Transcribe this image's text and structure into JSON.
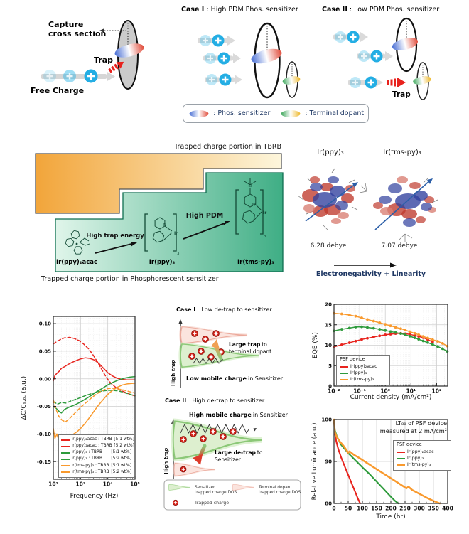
{
  "top": {
    "capture": {
      "line1": "Capture",
      "line2": "cross section",
      "trap": "Trap",
      "free_charge": "Free Charge"
    },
    "case1": {
      "label": "Case I",
      "rest": " : High PDM Phos. sensitizer"
    },
    "case2": {
      "label": "Case II",
      "rest": " : Low PDM Phos. sensitizer",
      "trap": "Trap"
    },
    "legend": {
      "phos": ": Phos. sensitizer",
      "terminal": ": Terminal dopant"
    }
  },
  "stair": {
    "top_label": "Trapped charge portion in TBRB",
    "bottom_label": "Trapped charge portion in Phosphorescent sensitizer",
    "arrow1": "High trap energy",
    "arrow2": "High PDM",
    "mol1": "Ir(ppy)₂acac",
    "mol2": "Ir(ppy)₃",
    "mol3": "Ir(tms-py)₃"
  },
  "dipole": {
    "left_name": "Ir(ppy)₃",
    "right_name": "Ir(tms-py)₃",
    "left_value": "6.28 debye",
    "right_value": "7.07 debye",
    "caption": "Electronegativity + Linearity"
  },
  "dos": {
    "case1_label": "Case I",
    "case1_rest": ": Low de-trap to sensitizer",
    "case2_label": "Case II",
    "case2_rest": ": High de-trap to sensitizer",
    "axis_high": "High",
    "axis_trap": "trap",
    "large_trap": "Large trap",
    "large_trap_to": "to",
    "terminal_dopant": "terminal dopant",
    "low_mobile": "Low mobile charge",
    "in_sensitizer": "in Sensitizer",
    "high_mobile": "High mobile charge",
    "in_sensitizer2": "in Sensitizer",
    "large_detrap": "Large de-trap",
    "large_detrap_to": "to",
    "sensitizer": "Sensitizer",
    "legend": {
      "sens1": "Sensitizer",
      "sens2": "trapped charge DOS",
      "term1": "Terminal dopant",
      "term2": "trapped charge DOS",
      "charge": "Trapped charge"
    }
  },
  "chart_data": [
    {
      "id": "chart-dcc",
      "type": "line",
      "xscale": "log",
      "xlabel": "Frequency (Hz)",
      "ylabel": "ΔC/Cₛ.ₒ. (a.u.)",
      "xlim": [
        100,
        100000
      ],
      "ylim": [
        -0.182,
        0.113
      ],
      "xticks": [
        100,
        1000,
        10000,
        100000
      ],
      "xtick_labels": [
        "10²",
        "10³",
        "10⁴",
        "10⁵"
      ],
      "yticks": [
        0.1,
        0.05,
        0.0,
        -0.05,
        -0.1,
        -0.15
      ],
      "ytick_labels": [
        "0.10",
        "0.05",
        "0.00",
        "-0.05",
        "-0.10",
        "-0.15"
      ],
      "series": [
        {
          "name": "Ir(ppy)₂acac : TBRB",
          "ratio": "[5:1 wt%]",
          "color": "#e8251f",
          "dash": "dashed",
          "x": [
            100,
            130,
            180,
            250,
            400,
            600,
            900,
            1300,
            2000,
            3000,
            4500,
            6500,
            9000,
            13000,
            20000,
            30000,
            50000,
            100000
          ],
          "y": [
            0.063,
            0.067,
            0.071,
            0.074,
            0.075,
            0.073,
            0.069,
            0.063,
            0.054,
            0.042,
            0.028,
            0.014,
            0.002,
            -0.008,
            -0.016,
            -0.021,
            -0.026,
            -0.031
          ]
        },
        {
          "name": "Ir(ppy)₂acac : TBRB",
          "ratio": "[5:2 wt%]",
          "color": "#e8251f",
          "dash": "solid",
          "x": [
            100,
            115,
            130,
            160,
            200,
            260,
            350,
            500,
            700,
            1000,
            1500,
            2200,
            3200,
            4700,
            7000,
            10000,
            15000,
            22000,
            33000,
            50000,
            100000
          ],
          "y": [
            -0.004,
            0.006,
            0.009,
            0.013,
            0.019,
            0.022,
            0.026,
            0.03,
            0.033,
            0.036,
            0.038,
            0.037,
            0.034,
            0.028,
            0.019,
            0.011,
            0.005,
            0.001,
            -0.001,
            -0.002,
            -0.002
          ]
        },
        {
          "name": "Ir(ppy)₃ : TBRB",
          "ratio": "[5:1 wt%]",
          "color": "#2e9b3c",
          "dash": "dashed",
          "x": [
            100,
            140,
            200,
            300,
            450,
            700,
            1000,
            1600,
            2500,
            4000,
            6500,
            10000,
            16000,
            25000,
            40000,
            65000,
            100000
          ],
          "y": [
            -0.041,
            -0.046,
            -0.043,
            -0.044,
            -0.04,
            -0.037,
            -0.034,
            -0.03,
            -0.027,
            -0.024,
            -0.022,
            -0.021,
            -0.021,
            -0.022,
            -0.025,
            -0.028,
            -0.031
          ]
        },
        {
          "name": "Ir(ppy)₃ : TBRB",
          "ratio": "[5:2 wt%]",
          "color": "#2e9b3c",
          "dash": "solid",
          "x": [
            100,
            130,
            170,
            200,
            250,
            320,
            450,
            700,
            1000,
            1600,
            2500,
            4000,
            6500,
            10000,
            16000,
            25000,
            40000,
            65000,
            100000
          ],
          "y": [
            -0.05,
            -0.054,
            -0.06,
            -0.062,
            -0.056,
            -0.053,
            -0.05,
            -0.046,
            -0.042,
            -0.036,
            -0.03,
            -0.023,
            -0.017,
            -0.011,
            -0.006,
            -0.002,
            0.001,
            0.003,
            0.004
          ]
        },
        {
          "name": "Ir(tms-py)₃ : TBRB",
          "ratio": "[5:1 wt%]",
          "color": "#f99a2e",
          "dash": "dashed",
          "x": [
            100,
            125,
            160,
            210,
            280,
            380,
            520,
            750,
            1100,
            1700,
            2600,
            4000,
            6000,
            9000,
            14000,
            22000,
            35000,
            60000,
            100000
          ],
          "y": [
            -0.038,
            -0.055,
            -0.068,
            -0.075,
            -0.078,
            -0.073,
            -0.066,
            -0.058,
            -0.05,
            -0.042,
            -0.034,
            -0.027,
            -0.022,
            -0.018,
            -0.017,
            -0.018,
            -0.02,
            -0.023,
            -0.026
          ]
        },
        {
          "name": "Ir(tms-py)₃ : TBRB",
          "ratio": "[5:2 wt%]",
          "color": "#f99a2e",
          "dash": "solid",
          "x": [
            100,
            115,
            135,
            160,
            200,
            250,
            320,
            420,
            560,
            750,
            1000,
            1400,
            2000,
            3000,
            4500,
            7000,
            10000,
            15000,
            23000,
            35000,
            55000,
            100000
          ],
          "y": [
            -0.09,
            -0.108,
            -0.1,
            -0.112,
            -0.105,
            -0.11,
            -0.104,
            -0.106,
            -0.1,
            -0.096,
            -0.09,
            -0.082,
            -0.072,
            -0.06,
            -0.048,
            -0.037,
            -0.028,
            -0.021,
            -0.015,
            -0.011,
            -0.009,
            -0.008
          ]
        }
      ]
    },
    {
      "id": "chart-eqe",
      "type": "line",
      "xscale": "log",
      "legend_title": "PSF device",
      "xlabel": "Current density (mA/cm²)",
      "ylabel": "EQE (%)",
      "xlim": [
        0.01,
        270
      ],
      "ylim": [
        0,
        20
      ],
      "xticks": [
        0.01,
        0.1,
        1,
        10,
        100
      ],
      "xtick_labels": [
        "10⁻²",
        "10⁻¹",
        "10⁰",
        "10¹",
        "10²"
      ],
      "yticks": [
        0,
        5,
        10,
        15,
        20
      ],
      "ytick_labels": [
        "0",
        "5",
        "10",
        "15",
        "20"
      ],
      "series": [
        {
          "name": "Ir(ppy)₂acac",
          "color": "#e8251f",
          "dash": "solid",
          "x": [
            0.01,
            0.02,
            0.04,
            0.07,
            0.12,
            0.2,
            0.35,
            0.6,
            1,
            1.6,
            2.5,
            4,
            6,
            9,
            14,
            20,
            30,
            45,
            70
          ],
          "y": [
            9.6,
            10.1,
            10.6,
            11.0,
            11.4,
            11.7,
            12.0,
            12.3,
            12.55,
            12.7,
            12.85,
            12.9,
            12.8,
            12.65,
            12.4,
            12.15,
            11.85,
            11.4,
            10.8
          ]
        },
        {
          "name": "Ir(ppy)₃",
          "color": "#2e9b3c",
          "dash": "solid",
          "x": [
            0.01,
            0.02,
            0.04,
            0.07,
            0.12,
            0.2,
            0.35,
            0.6,
            1,
            1.6,
            2.5,
            4,
            6,
            9,
            14,
            20,
            30,
            45,
            70,
            110,
            170,
            260
          ],
          "y": [
            13.5,
            13.9,
            14.2,
            14.45,
            14.5,
            14.35,
            14.15,
            13.9,
            13.6,
            13.35,
            13.1,
            12.85,
            12.55,
            12.2,
            11.8,
            11.45,
            11.05,
            10.65,
            10.2,
            9.7,
            9.15,
            8.5
          ]
        },
        {
          "name": "Ir(tms-py)₃",
          "color": "#f99a2e",
          "dash": "solid",
          "x": [
            0.01,
            0.02,
            0.04,
            0.07,
            0.12,
            0.2,
            0.35,
            0.6,
            1,
            1.6,
            2.5,
            4,
            6,
            9,
            14,
            20,
            30,
            45,
            70,
            110,
            170,
            260
          ],
          "y": [
            17.8,
            17.65,
            17.4,
            17.1,
            16.7,
            16.3,
            15.9,
            15.5,
            15.1,
            14.75,
            14.4,
            14.05,
            13.7,
            13.3,
            12.9,
            12.55,
            12.15,
            11.75,
            11.35,
            10.95,
            10.45,
            9.8
          ]
        }
      ]
    },
    {
      "id": "chart-lt",
      "type": "line",
      "xscale": "linear",
      "legend_title": "PSF device",
      "annotation_line1": "LT₈₀ of PSF device",
      "annotation_line2": "measured at 2 mA/cm²",
      "xlabel": "Time (hr)",
      "ylabel": "Relative Luminance (a.u.)",
      "xlim": [
        0,
        400
      ],
      "ylim": [
        80,
        100
      ],
      "xticks": [
        0,
        50,
        100,
        150,
        200,
        250,
        300,
        350,
        400
      ],
      "xtick_labels": [
        "0",
        "50",
        "100",
        "150",
        "200",
        "250",
        "300",
        "350",
        "400"
      ],
      "yticks": [
        80,
        90,
        100
      ],
      "ytick_labels": [
        "80",
        "90",
        "100"
      ],
      "series": [
        {
          "name": "Ir(ppy)₂acac",
          "color": "#e8251f",
          "dash": "solid",
          "x": [
            0,
            3,
            8,
            15,
            25,
            35,
            45,
            55,
            65,
            75,
            85,
            92
          ],
          "y": [
            100,
            96.8,
            94.8,
            93.0,
            91.0,
            89.3,
            87.6,
            86.0,
            84.3,
            82.7,
            81.0,
            80.0
          ]
        },
        {
          "name": "Ir(ppy)₃",
          "color": "#2e9b3c",
          "dash": "solid",
          "x": [
            0,
            3,
            10,
            25,
            50,
            75,
            100,
            125,
            150,
            175,
            200,
            215,
            226
          ],
          "y": [
            100,
            97.5,
            96.0,
            94.0,
            92.0,
            90.3,
            88.6,
            87.0,
            85.2,
            83.4,
            81.6,
            80.6,
            80.0
          ]
        },
        {
          "name": "Ir(tms-py)₃",
          "color": "#f99a2e",
          "dash": "solid",
          "lw": 2.5,
          "x": [
            0,
            3,
            10,
            20,
            35,
            50,
            55,
            70,
            90,
            110,
            140,
            170,
            200,
            230,
            255,
            262,
            275,
            300,
            325,
            350,
            372
          ],
          "y": [
            100,
            97.0,
            95.8,
            94.8,
            93.6,
            92.1,
            92.4,
            91.6,
            90.8,
            89.9,
            88.6,
            87.3,
            86.0,
            84.7,
            83.6,
            84.0,
            83.2,
            82.3,
            81.4,
            80.6,
            80.0
          ]
        }
      ]
    }
  ]
}
